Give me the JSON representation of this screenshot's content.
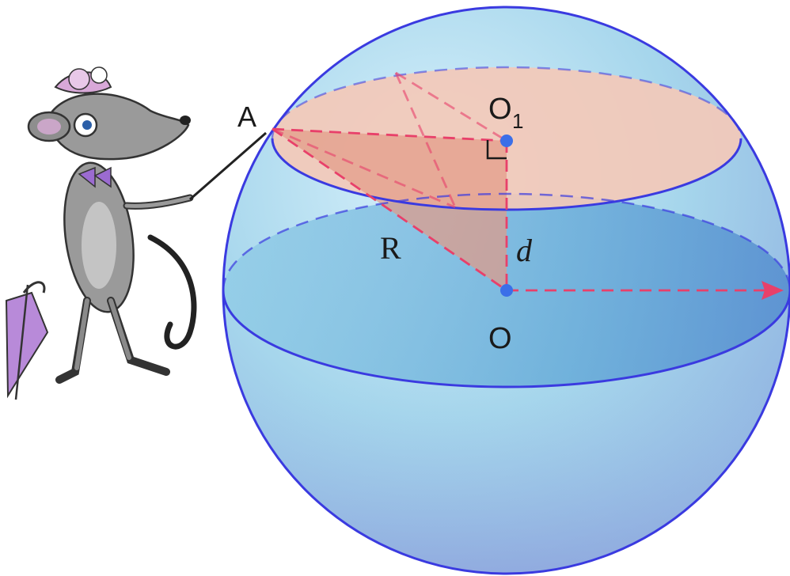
{
  "labels": {
    "point_a": "A",
    "center_small": "O",
    "center_small_sub": "1",
    "center_big": "O",
    "radius": "R",
    "distance": "d"
  },
  "colors": {
    "sphere_edge": "#3a3ae0",
    "dash_red": "#e8406a",
    "point_blue": "#3b6fe8",
    "section_fill": "#f3c9b8",
    "triangle_fill": "#e29a86"
  },
  "illustration": {
    "character": "mouse-with-pointer-and-umbrella"
  }
}
